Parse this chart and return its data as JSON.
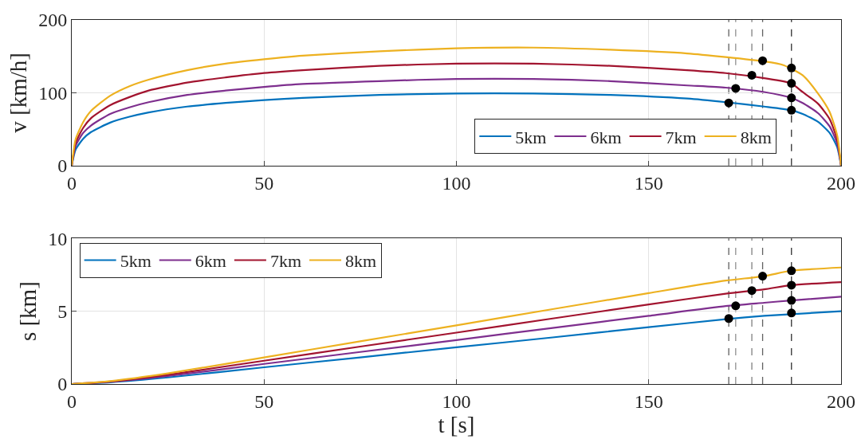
{
  "chart_data": [
    {
      "type": "line",
      "ylabel": "v [km/h]",
      "xlim": [
        0,
        200
      ],
      "xticks": [
        0,
        50,
        100,
        150,
        200
      ],
      "ylim": [
        0,
        200
      ],
      "yticks": [
        0,
        100,
        200
      ],
      "grid": true,
      "legend": "bottom",
      "marker": "none",
      "line_style": "solid",
      "series": [
        {
          "name": "5km",
          "color": "#0072bd",
          "x": [
            0,
            1,
            3,
            5,
            10,
            15,
            20,
            30,
            40,
            50,
            60,
            80,
            100,
            120,
            140,
            160,
            170,
            180,
            187,
            190,
            194,
            197,
            199,
            200
          ],
          "values": [
            0,
            22,
            37,
            46,
            59,
            67,
            73,
            81,
            86,
            90,
            93,
            97,
            99,
            99,
            97,
            92,
            87,
            81,
            76,
            71,
            60,
            45,
            25,
            0
          ]
        },
        {
          "name": "6km",
          "color": "#7e2f8e",
          "x": [
            0,
            1,
            3,
            5,
            10,
            15,
            20,
            30,
            40,
            50,
            60,
            80,
            100,
            120,
            140,
            160,
            170,
            180,
            187,
            190,
            194,
            197,
            199,
            200
          ],
          "values": [
            0,
            27,
            45,
            55,
            71,
            80,
            87,
            97,
            103,
            108,
            112,
            116,
            119,
            119,
            116,
            110,
            107,
            101,
            93,
            86,
            72,
            54,
            30,
            0
          ]
        },
        {
          "name": "7km",
          "color": "#a2142f",
          "x": [
            0,
            1,
            3,
            5,
            10,
            15,
            20,
            30,
            40,
            50,
            60,
            80,
            100,
            120,
            140,
            160,
            170,
            180,
            187,
            190,
            194,
            197,
            199,
            200
          ],
          "values": [
            0,
            31,
            52,
            65,
            83,
            94,
            103,
            114,
            121,
            127,
            131,
            137,
            140,
            140,
            137,
            131,
            127,
            120,
            113,
            101,
            85,
            64,
            35,
            0
          ]
        },
        {
          "name": "8km",
          "color": "#edb120",
          "x": [
            0,
            1,
            3,
            5,
            10,
            15,
            20,
            30,
            40,
            50,
            60,
            80,
            100,
            120,
            140,
            160,
            170,
            180,
            185,
            190,
            194,
            197,
            199,
            200
          ],
          "values": [
            0,
            36,
            60,
            75,
            96,
            109,
            118,
            131,
            140,
            146,
            151,
            157,
            161,
            162,
            159,
            154,
            149,
            143,
            138,
            124,
            99,
            74,
            41,
            0
          ]
        },
        {
          "type": "scatter",
          "marker": "circle",
          "color": "#000000",
          "x": [
            170.8,
            172.6,
            176.8,
            179.6,
            187.1,
            187.1,
            187.1,
            187.1
          ],
          "values": [
            86,
            106,
            124,
            144,
            76,
            93,
            113,
            134
          ]
        }
      ],
      "ref_lines": [
        {
          "axis": "x",
          "value": 170.8,
          "color": "#606060",
          "line_style": "dashed"
        },
        {
          "axis": "x",
          "value": 172.6,
          "color": "#909090",
          "line_style": "dashed"
        },
        {
          "axis": "x",
          "value": 176.8,
          "color": "#808080",
          "line_style": "dashed"
        },
        {
          "axis": "x",
          "value": 179.6,
          "color": "#606060",
          "line_style": "dashed"
        },
        {
          "axis": "x",
          "value": 187.1,
          "color": "#303030",
          "line_style": "dashed"
        }
      ]
    },
    {
      "type": "line",
      "xlabel": "t [s]",
      "ylabel": "s [km]",
      "xlim": [
        0,
        200
      ],
      "xticks": [
        0,
        50,
        100,
        150,
        200
      ],
      "ylim": [
        0,
        10
      ],
      "yticks": [
        0,
        5,
        10
      ],
      "grid": true,
      "legend": "top left",
      "marker": "none",
      "line_style": "solid",
      "series": [
        {
          "name": "5km",
          "color": "#0072bd",
          "x": [
            0,
            10,
            25,
            50,
            75,
            100,
            125,
            150,
            170,
            180,
            200
          ],
          "values": [
            0,
            0.12,
            0.45,
            1.15,
            1.83,
            2.52,
            3.2,
            3.9,
            4.45,
            4.68,
            5.0
          ]
        },
        {
          "name": "6km",
          "color": "#7e2f8e",
          "x": [
            0,
            10,
            25,
            50,
            75,
            100,
            125,
            150,
            170,
            180,
            187,
            200
          ],
          "values": [
            0,
            0.15,
            0.55,
            1.38,
            2.2,
            3.02,
            3.85,
            4.68,
            5.35,
            5.58,
            5.74,
            6.0
          ]
        },
        {
          "name": "7km",
          "color": "#a2142f",
          "x": [
            0,
            10,
            25,
            50,
            75,
            100,
            125,
            150,
            170,
            180,
            187,
            200
          ],
          "values": [
            0,
            0.17,
            0.64,
            1.6,
            2.57,
            3.53,
            4.5,
            5.46,
            6.2,
            6.5,
            6.79,
            7.0
          ]
        },
        {
          "name": "8km",
          "color": "#edb120",
          "x": [
            0,
            10,
            25,
            50,
            75,
            100,
            125,
            150,
            170,
            180,
            187,
            200
          ],
          "values": [
            0,
            0.2,
            0.73,
            1.83,
            2.93,
            4.03,
            5.14,
            6.24,
            7.1,
            7.41,
            7.78,
            8.0
          ]
        },
        {
          "type": "scatter",
          "marker": "circle",
          "color": "#000000",
          "x": [
            170.8,
            172.6,
            176.8,
            179.6,
            187.1,
            187.1,
            187.1,
            187.1
          ],
          "values": [
            4.5,
            5.37,
            6.42,
            7.41,
            4.88,
            5.74,
            6.79,
            7.78
          ]
        }
      ],
      "ref_lines": [
        {
          "axis": "x",
          "value": 170.8,
          "color": "#606060",
          "line_style": "dashed"
        },
        {
          "axis": "x",
          "value": 172.6,
          "color": "#909090",
          "line_style": "dashed"
        },
        {
          "axis": "x",
          "value": 176.8,
          "color": "#808080",
          "line_style": "dashed"
        },
        {
          "axis": "x",
          "value": 179.6,
          "color": "#606060",
          "line_style": "dashed"
        },
        {
          "axis": "x",
          "value": 187.1,
          "color": "#303030",
          "line_style": "dashed"
        }
      ]
    }
  ]
}
